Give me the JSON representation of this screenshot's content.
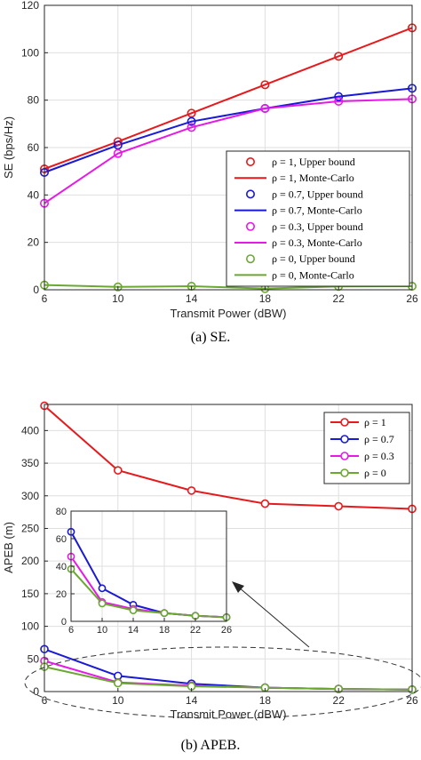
{
  "chart_data": [
    {
      "type": "line",
      "caption": "(a) SE.",
      "xlabel": "Transmit Power (dBW)",
      "ylabel": "SE (bps/Hz)",
      "xlim": [
        6,
        26
      ],
      "ylim": [
        0,
        120
      ],
      "xticks": [
        6,
        10,
        14,
        18,
        22,
        26
      ],
      "yticks": [
        0,
        20,
        40,
        60,
        80,
        100,
        120
      ],
      "grid": true,
      "legend_position": "center-right",
      "x": [
        6,
        10,
        14,
        18,
        22,
        26
      ],
      "series": [
        {
          "name": "ρ = 1, Upper bound",
          "style": "markers",
          "color": "#e6191c",
          "values": [
            51,
            62.5,
            74.5,
            86.5,
            98.5,
            110.5
          ]
        },
        {
          "name": "ρ = 1, Monte-Carlo",
          "style": "line",
          "color": "#e6191c",
          "values": [
            51,
            62.5,
            74.5,
            86.5,
            98.5,
            110.5
          ]
        },
        {
          "name": "ρ = 0.7, Upper bound",
          "style": "markers",
          "color": "#1919d6",
          "values": [
            49.5,
            61,
            71,
            76.5,
            81.5,
            85
          ]
        },
        {
          "name": "ρ = 0.7, Monte-Carlo",
          "style": "line",
          "color": "#1919d6",
          "values": [
            49.5,
            61,
            71,
            76.5,
            81.5,
            85
          ]
        },
        {
          "name": "ρ = 0.3, Upper bound",
          "style": "markers",
          "color": "#e619e6",
          "values": [
            36.5,
            57.5,
            68.5,
            76.5,
            79.5,
            80.5
          ]
        },
        {
          "name": "ρ = 0.3, Monte-Carlo",
          "style": "line",
          "color": "#e619e6",
          "values": [
            36.5,
            57.5,
            68.5,
            76.5,
            79.5,
            80.5
          ]
        },
        {
          "name": "ρ = 0, Upper bound",
          "style": "markers",
          "color": "#6aa832",
          "values": [
            2,
            1.2,
            1.5,
            0.5,
            1.4,
            1.5
          ]
        },
        {
          "name": "ρ = 0, Monte-Carlo",
          "style": "line",
          "color": "#6aa832",
          "values": [
            2,
            1.2,
            1.5,
            0.5,
            1.4,
            1.5
          ]
        }
      ]
    },
    {
      "type": "line",
      "caption": "(b) APEB.",
      "xlabel": "Transmit Power (dBW)",
      "ylabel": "APEB (m)",
      "xlim": [
        6,
        26
      ],
      "ylim": [
        0,
        440
      ],
      "xticks": [
        6,
        10,
        14,
        18,
        22,
        26
      ],
      "yticks": [
        0,
        50,
        100,
        150,
        200,
        250,
        300,
        350,
        400
      ],
      "grid": true,
      "legend_position": "top-right",
      "x": [
        6,
        10,
        14,
        18,
        22,
        26
      ],
      "series": [
        {
          "name": "ρ = 1",
          "style": "line+markers",
          "color": "#e6191c",
          "values": [
            438,
            339,
            308,
            288,
            284,
            280
          ]
        },
        {
          "name": "ρ = 0.7",
          "style": "line+markers",
          "color": "#1919d6",
          "values": [
            65,
            24,
            12,
            6,
            4,
            3
          ]
        },
        {
          "name": "ρ = 0.3",
          "style": "line+markers",
          "color": "#e619e6",
          "values": [
            47,
            14,
            9,
            6,
            4,
            3
          ]
        },
        {
          "name": "ρ = 0",
          "style": "line+markers",
          "color": "#6aa832",
          "values": [
            38,
            13,
            8,
            6,
            4,
            3
          ]
        }
      ],
      "inset": {
        "xlim": [
          6,
          26
        ],
        "ylim": [
          0,
          80
        ],
        "xticks": [
          6,
          10,
          14,
          18,
          22,
          26
        ],
        "yticks": [
          0,
          20,
          40,
          60,
          80
        ],
        "grid": true,
        "series": [
          {
            "color": "#1919d6",
            "values": [
              65,
              24,
              12,
              6,
              4,
              3
            ]
          },
          {
            "color": "#e619e6",
            "values": [
              47,
              14,
              9,
              6,
              4,
              3
            ]
          },
          {
            "color": "#6aa832",
            "values": [
              38,
              13,
              8,
              6,
              4,
              3
            ]
          }
        ]
      }
    }
  ]
}
